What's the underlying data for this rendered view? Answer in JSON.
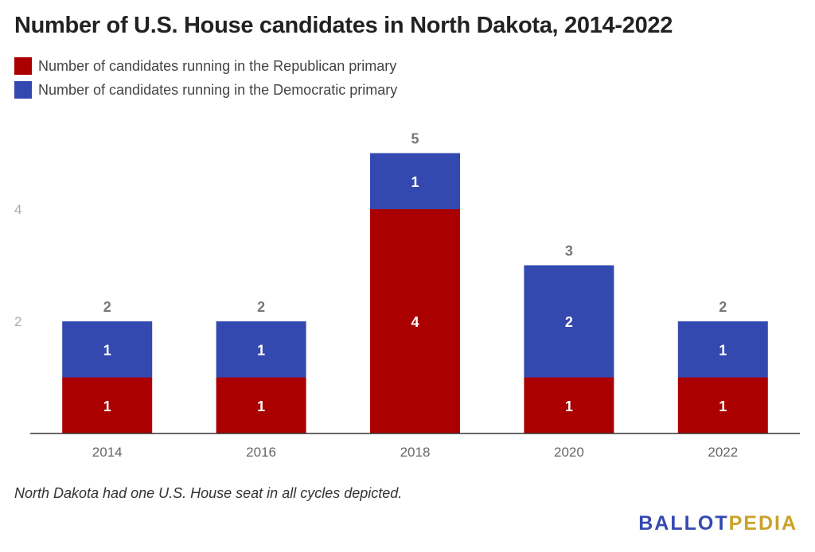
{
  "title": "Number of U.S. House candidates in North Dakota, 2014-2022",
  "legend": [
    {
      "label": "Number of candidates running in the Republican primary",
      "color": "#aa0000"
    },
    {
      "label": "Number of candidates running in the Democratic primary",
      "color": "#3449b0"
    }
  ],
  "chart_data": {
    "type": "bar",
    "stacked": true,
    "title": "Number of U.S. House candidates in North Dakota, 2014-2022",
    "categories": [
      "2014",
      "2016",
      "2018",
      "2020",
      "2022"
    ],
    "series": [
      {
        "name": "Number of candidates running in the Republican primary",
        "values": [
          1,
          1,
          4,
          1,
          1
        ],
        "color": "#aa0000"
      },
      {
        "name": "Number of candidates running in the Democratic primary",
        "values": [
          1,
          1,
          1,
          2,
          1
        ],
        "color": "#3449b0"
      }
    ],
    "totals": [
      2,
      2,
      5,
      3,
      2
    ],
    "yticks": [
      2,
      4
    ],
    "ylim": [
      0,
      5.8
    ],
    "grid": false,
    "legend_position": "top-left"
  },
  "note": "North Dakota had one U.S. House seat in all cycles depicted.",
  "brand": {
    "part1": "BALLOT",
    "part2": "PEDIA",
    "color1": "#3449b0",
    "color2": "#c9a227"
  }
}
